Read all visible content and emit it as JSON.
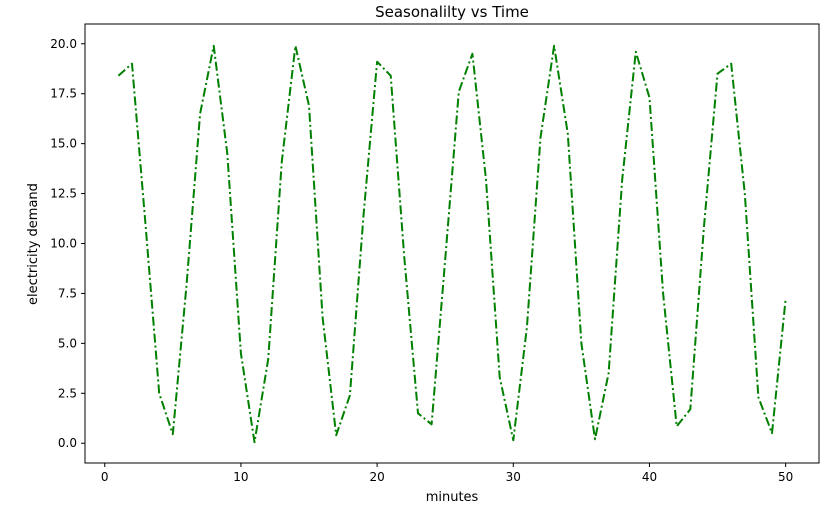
{
  "chart_data": {
    "type": "line",
    "title": "Seasonalilty vs Time",
    "xlabel": "minutes",
    "ylabel": "electricity demand",
    "xlim": [
      -1.45,
      52.45
    ],
    "ylim": [
      -0.99,
      20.99
    ],
    "xticks": [
      "0",
      "10",
      "20",
      "30",
      "40",
      "50"
    ],
    "yticks": [
      "0.0",
      "2.5",
      "5.0",
      "7.5",
      "10.0",
      "12.5",
      "15.0",
      "17.5",
      "20.0"
    ],
    "grid": false,
    "legend": "none",
    "series": [
      {
        "color": "#008000",
        "linestyle": "dashdot",
        "x": [
          1,
          2,
          3,
          4,
          5,
          6,
          7,
          8,
          9,
          10,
          11,
          12,
          13,
          14,
          15,
          16,
          17,
          18,
          19,
          20,
          21,
          22,
          23,
          24,
          25,
          26,
          27,
          28,
          29,
          30,
          31,
          32,
          33,
          34,
          35,
          36,
          37,
          38,
          39,
          40,
          41,
          42,
          43,
          44,
          45,
          46,
          47,
          48,
          49,
          50
        ],
        "y": [
          18.4,
          19.0,
          10.9,
          2.5,
          0.45,
          7.9,
          16.5,
          19.9,
          14.5,
          4.5,
          0.05,
          4.2,
          14.1,
          19.9,
          16.9,
          6.3,
          0.4,
          2.4,
          11.4,
          19.1,
          18.4,
          9.3,
          1.5,
          0.95,
          9.2,
          17.6,
          19.5,
          13.2,
          3.3,
          0.15,
          5.8,
          15.3,
          19.9,
          15.5,
          5.0,
          0.2,
          3.5,
          13.2,
          19.6,
          17.3,
          7.5,
          0.85,
          1.7,
          10.8,
          18.5,
          19.0,
          12.5,
          2.3,
          0.5,
          7.2
        ]
      }
    ]
  }
}
